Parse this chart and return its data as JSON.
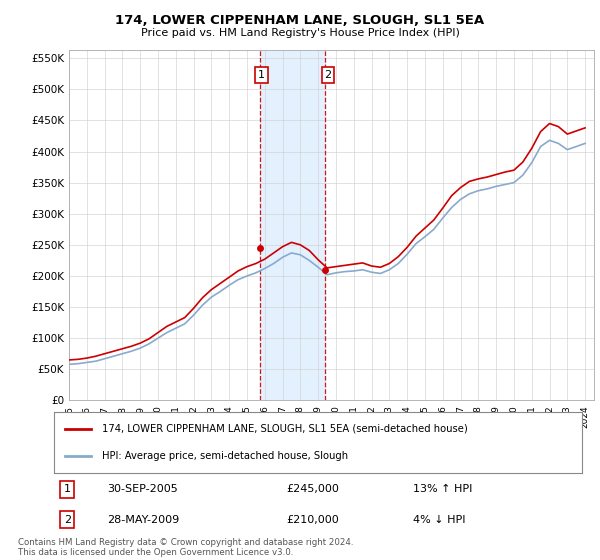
{
  "title": "174, LOWER CIPPENHAM LANE, SLOUGH, SL1 5EA",
  "subtitle": "Price paid vs. HM Land Registry's House Price Index (HPI)",
  "legend_label_red": "174, LOWER CIPPENHAM LANE, SLOUGH, SL1 5EA (semi-detached house)",
  "legend_label_blue": "HPI: Average price, semi-detached house, Slough",
  "transaction1_date": "30-SEP-2005",
  "transaction1_price": "£245,000",
  "transaction1_hpi": "13% ↑ HPI",
  "transaction2_date": "28-MAY-2009",
  "transaction2_price": "£210,000",
  "transaction2_hpi": "4% ↓ HPI",
  "footnote": "Contains HM Land Registry data © Crown copyright and database right 2024.\nThis data is licensed under the Open Government Licence v3.0.",
  "ylim_min": 0,
  "ylim_max": 562500,
  "color_red": "#cc0000",
  "color_blue": "#88aacc",
  "color_shading": "#ddeeff",
  "color_grid": "#cccccc",
  "marker1_year": 2005.75,
  "marker1_value": 245000,
  "marker2_year": 2009.4,
  "marker2_value": 210000,
  "shade_start": 2005.75,
  "shade_end": 2009.4,
  "xlim_min": 1995,
  "xlim_max": 2024.5,
  "years_hpi": [
    1995.0,
    1995.5,
    1996.0,
    1996.5,
    1997.0,
    1997.5,
    1998.0,
    1998.5,
    1999.0,
    1999.5,
    2000.0,
    2000.5,
    2001.0,
    2001.5,
    2002.0,
    2002.5,
    2003.0,
    2003.5,
    2004.0,
    2004.5,
    2005.0,
    2005.5,
    2006.0,
    2006.5,
    2007.0,
    2007.5,
    2008.0,
    2008.5,
    2009.0,
    2009.5,
    2010.0,
    2010.5,
    2011.0,
    2011.5,
    2012.0,
    2012.5,
    2013.0,
    2013.5,
    2014.0,
    2014.5,
    2015.0,
    2015.5,
    2016.0,
    2016.5,
    2017.0,
    2017.5,
    2018.0,
    2018.5,
    2019.0,
    2019.5,
    2020.0,
    2020.5,
    2021.0,
    2021.5,
    2022.0,
    2022.5,
    2023.0,
    2023.5,
    2024.0
  ],
  "hpi_vals": [
    58000,
    59000,
    61000,
    63000,
    67000,
    71000,
    75000,
    79000,
    84000,
    91000,
    100000,
    109000,
    116000,
    123000,
    137000,
    153000,
    166000,
    175000,
    185000,
    194000,
    200000,
    205000,
    212000,
    220000,
    230000,
    237000,
    234000,
    225000,
    214000,
    202000,
    205000,
    207000,
    208000,
    210000,
    206000,
    204000,
    210000,
    220000,
    235000,
    252000,
    263000,
    275000,
    293000,
    310000,
    323000,
    332000,
    337000,
    340000,
    344000,
    347000,
    350000,
    362000,
    382000,
    408000,
    418000,
    413000,
    403000,
    408000,
    413000
  ],
  "red_vals": [
    65000,
    66000,
    68000,
    71000,
    75000,
    79000,
    83000,
    87000,
    92000,
    99000,
    109000,
    119000,
    126000,
    133000,
    148000,
    165000,
    178000,
    188000,
    198000,
    208000,
    215000,
    220000,
    227000,
    237000,
    247000,
    254000,
    250000,
    241000,
    226000,
    213000,
    215000,
    217000,
    219000,
    221000,
    216000,
    214000,
    220000,
    231000,
    246000,
    264000,
    277000,
    290000,
    309000,
    329000,
    342000,
    352000,
    356000,
    359000,
    363000,
    367000,
    370000,
    383000,
    405000,
    432000,
    445000,
    440000,
    428000,
    433000,
    438000
  ]
}
